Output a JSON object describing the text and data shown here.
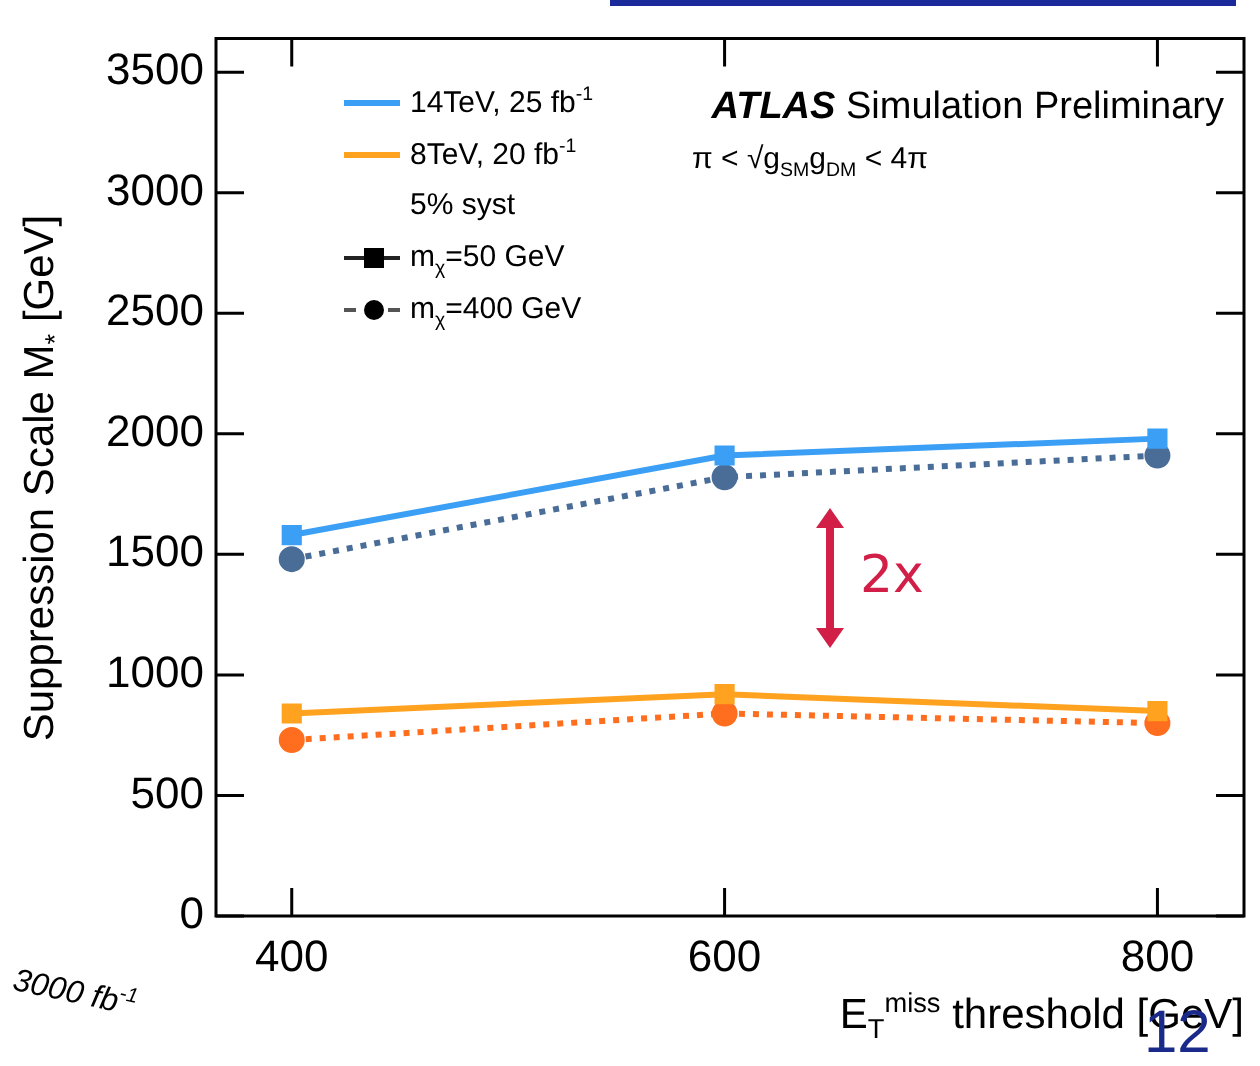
{
  "chart_data": {
    "type": "line",
    "xlabel": "E$_{T}$$^{miss}$ threshold [GeV]",
    "ylabel": "Suppression Scale M$_{*}$ [GeV]",
    "x": [
      400,
      600,
      800
    ],
    "xlim": [
      365,
      840
    ],
    "xticks": [
      400,
      600,
      800
    ],
    "ylim": [
      0,
      3640
    ],
    "yticks": [
      0,
      500,
      1000,
      1500,
      2000,
      2500,
      3000,
      3500
    ],
    "grid": false,
    "legend": "top left",
    "series": [
      {
        "name": "14TeV, 25 fb$^{-1}$",
        "color": "#3b9ff5",
        "values": [
          1580,
          1910,
          1980
        ],
        "marker": "square",
        "line_style": "solid"
      },
      {
        "color": "#4a6d98",
        "values": [
          1480,
          1820,
          1910
        ],
        "marker": "circle",
        "line_style": "dotted"
      },
      {
        "name": "8TeV, 20 fb$^{-1}$",
        "color": "#ffa21f",
        "values": [
          840,
          920,
          850
        ],
        "marker": "square",
        "line_style": "solid"
      },
      {
        "color": "#ff6d1f",
        "values": [
          730,
          840,
          800
        ],
        "marker": "circle",
        "line_style": "dotted"
      }
    ],
    "annotations": [
      "ATLAS Simulation Preliminary",
      "π < √g$_{SM}$g$_{DM}$ < 4π",
      "5% syst",
      "m$_{χ}$=50 GeV",
      "m$_{χ}$=400 GeV",
      "2x",
      "3000 fb$^{-1}$",
      "12"
    ]
  }
}
